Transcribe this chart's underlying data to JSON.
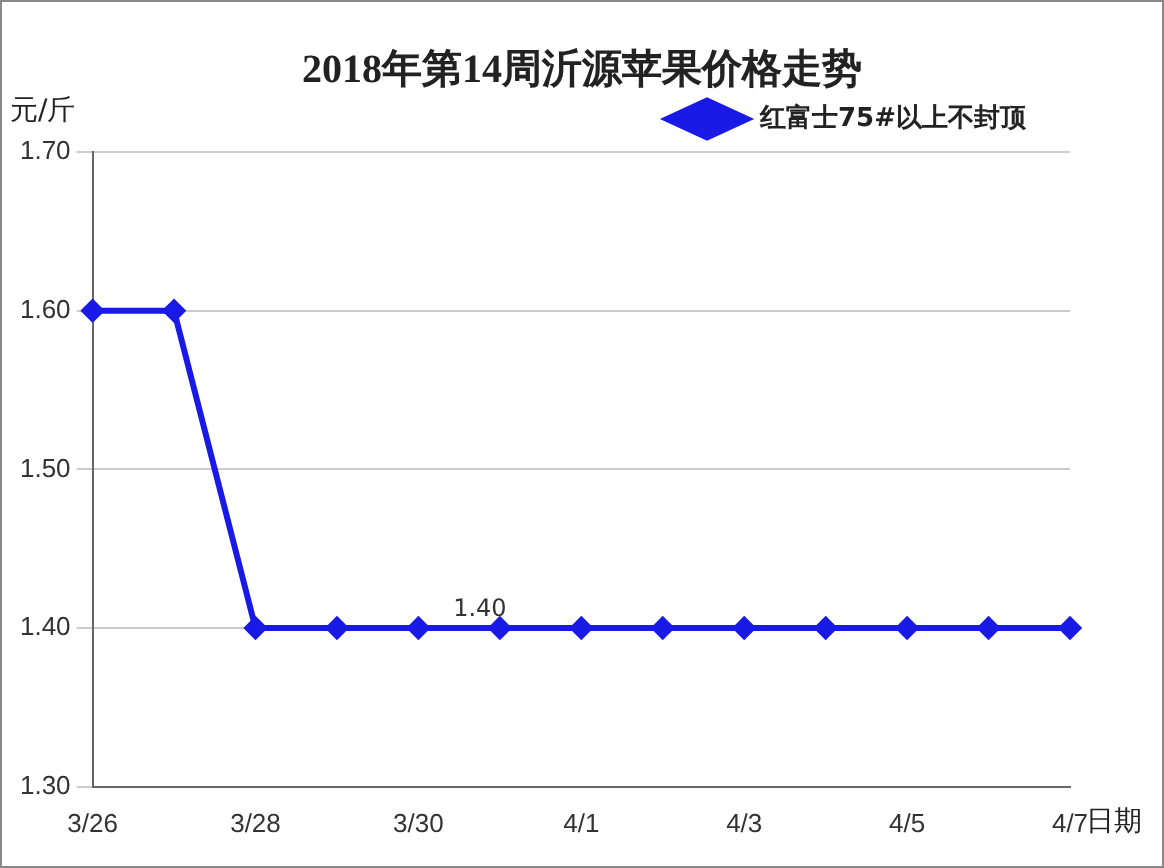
{
  "chart_data": {
    "type": "line",
    "title": "2018年第14周沂源苹果价格走势",
    "ylabel": "元/斤",
    "xlabel": "日期",
    "categories": [
      "3/26",
      null,
      "3/28",
      null,
      "3/30",
      null,
      "4/1",
      null,
      "4/3",
      null,
      "4/5",
      null,
      "4/7"
    ],
    "series": [
      {
        "name": "红富士75#以上不封顶",
        "color": "#1a1ae6",
        "values": [
          1.6,
          1.6,
          1.4,
          1.4,
          1.4,
          1.4,
          1.4,
          1.4,
          1.4,
          1.4,
          1.4,
          1.4,
          1.4
        ],
        "value_labels": [
          null,
          null,
          null,
          null,
          null,
          "1.40",
          null,
          null,
          null,
          null,
          null,
          null,
          null
        ]
      }
    ],
    "ylim": [
      1.3,
      1.7
    ],
    "yticks": [
      {
        "value": 1.3,
        "label": "1.30"
      },
      {
        "value": 1.4,
        "label": "1.40"
      },
      {
        "value": 1.5,
        "label": "1.50"
      },
      {
        "value": 1.6,
        "label": "1.60"
      },
      {
        "value": 1.7,
        "label": "1.70"
      }
    ],
    "grid": "y",
    "legend": "top right",
    "marker": "diamond",
    "line_style": "solid"
  }
}
